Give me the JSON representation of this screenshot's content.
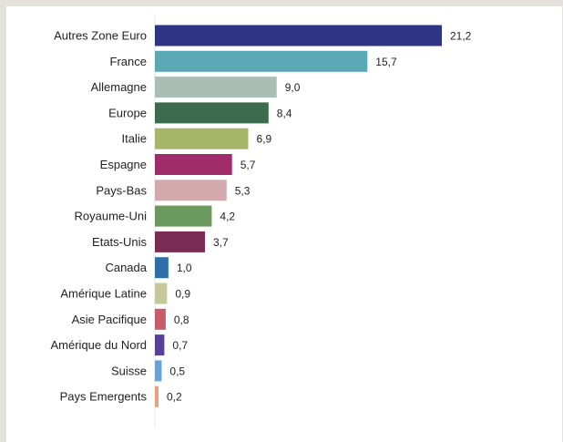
{
  "chart_data": {
    "type": "bar",
    "orientation": "horizontal",
    "categories": [
      "Autres Zone Euro",
      "France",
      "Allemagne",
      "Europe",
      "Italie",
      "Espagne",
      "Pays-Bas",
      "Royaume-Uni",
      "Etats-Unis",
      "Canada",
      "Amérique Latine",
      "Asie Pacifique",
      "Amérique du Nord",
      "Suisse",
      "Pays Emergents"
    ],
    "values": [
      21.2,
      15.7,
      9.0,
      8.4,
      6.9,
      5.7,
      5.3,
      4.2,
      3.7,
      1.0,
      0.9,
      0.8,
      0.7,
      0.5,
      0.2
    ],
    "value_labels": [
      "21,2",
      "15,7",
      "9,0",
      "8,4",
      "6,9",
      "5,7",
      "5,3",
      "4,2",
      "3,7",
      "1,0",
      "0,9",
      "0,8",
      "0,7",
      "0,5",
      "0,2"
    ],
    "colors": [
      "#2d3584",
      "#5aa9b5",
      "#a9bfb6",
      "#3d6b4e",
      "#a6b56a",
      "#a12c6b",
      "#d4a9ad",
      "#6c9a5e",
      "#7a2c55",
      "#2f6fa8",
      "#c6c79a",
      "#c75b6a",
      "#5a3f9c",
      "#6aa2d4",
      "#e8a07d"
    ],
    "title": "",
    "xlabel": "",
    "ylabel": "",
    "xlim": [
      0,
      21.2
    ],
    "grid": false,
    "legend": "none"
  }
}
